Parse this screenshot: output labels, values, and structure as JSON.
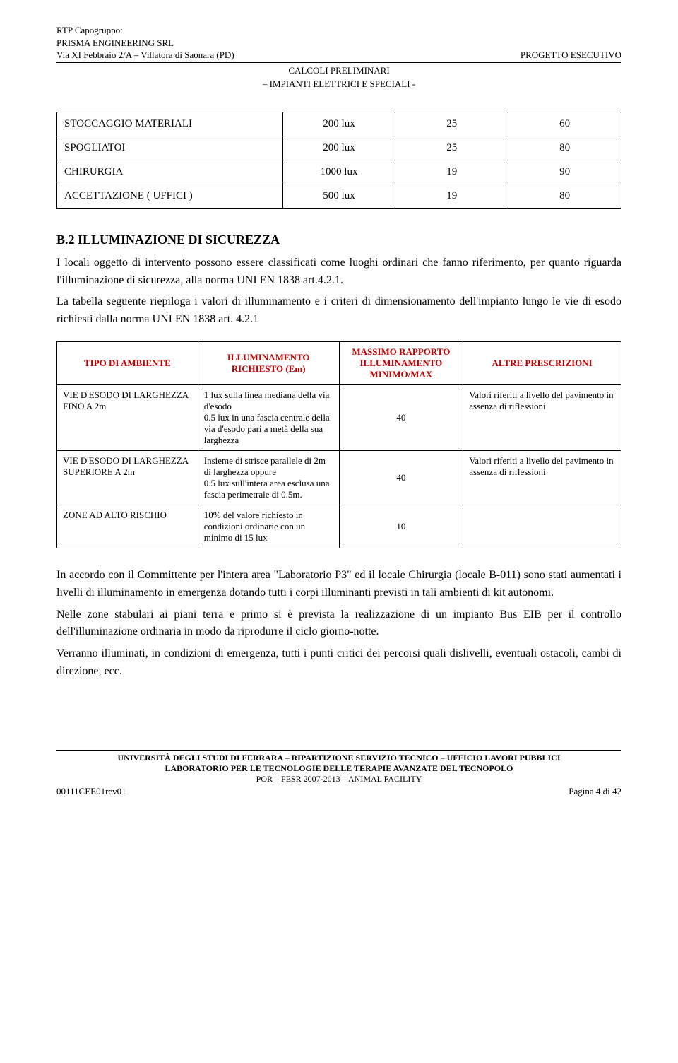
{
  "header": {
    "left1": "RTP Capogruppo:",
    "left2": "PRISMA ENGINEERING SRL",
    "left3": "Via XI Febbraio 2/A – Villatora di Saonara (PD)",
    "right": "PROGETTO ESECUTIVO",
    "center1": "CALCOLI PRELIMINARI",
    "center2": "– IMPIANTI ELETTRICI E SPECIALI -"
  },
  "table1": {
    "rows": [
      {
        "label": "STOCCAGGIO MATERIALI",
        "c2": "200 lux",
        "c3": "25",
        "c4": "60"
      },
      {
        "label": "SPOGLIATOI",
        "c2": "200 lux",
        "c3": "25",
        "c4": "80"
      },
      {
        "label": "CHIRURGIA",
        "c2": "1000 lux",
        "c3": "19",
        "c4": "90"
      },
      {
        "label": "ACCETTAZIONE ( UFFICI )",
        "c2": "500 lux",
        "c3": "19",
        "c4": "80"
      }
    ]
  },
  "section": {
    "heading": "B.2   ILLUMINAZIONE DI SICUREZZA",
    "p1": "I locali oggetto di intervento possono essere classificati come luoghi ordinari che fanno riferimento, per quanto riguarda l'illuminazione di sicurezza, alla norma UNI EN 1838 art.4.2.1.",
    "p2": "La tabella seguente riepiloga i valori di illuminamento e i criteri di dimensionamento dell'impianto lungo le vie di esodo richiesti dalla norma UNI EN 1838 art. 4.2.1"
  },
  "table2": {
    "headers": {
      "h1": "TIPO DI AMBIENTE",
      "h2": "ILLUMINAMENTO RICHIESTO (Em)",
      "h3": "MASSIMO RAPPORTO ILLUMINAMENTO MINIMO/MAX",
      "h4": "ALTRE PRESCRIZIONI",
      "red_color": "#c00000"
    },
    "rows": [
      {
        "c1": "VIE D'ESODO DI LARGHEZZA FINO A 2m",
        "c2": "1 lux sulla linea mediana della via d'esodo\n0.5 lux in una fascia centrale della via d'esodo pari a metà della sua larghezza",
        "c3": "40",
        "c4": "Valori riferiti a livello del pavimento in assenza di riflessioni"
      },
      {
        "c1": "VIE D'ESODO DI LARGHEZZA SUPERIORE A 2m",
        "c2": "Insieme di strisce parallele di 2m di larghezza oppure\n0.5 lux sull'intera area esclusa una fascia perimetrale di 0.5m.",
        "c3": "40",
        "c4": "Valori riferiti a livello del pavimento in assenza di riflessioni"
      },
      {
        "c1": "ZONE AD ALTO RISCHIO",
        "c2": "10% del valore richiesto in condizioni ordinarie con un minimo di 15 lux",
        "c3": "10",
        "c4": ""
      }
    ]
  },
  "paras": {
    "p1": "In accordo con il Committente per l'intera area \"Laboratorio P3\" ed il locale Chirurgia (locale B-011) sono stati aumentati i livelli di illuminamento in emergenza dotando tutti i corpi illuminanti previsti in tali ambienti di kit autonomi.",
    "p2": "Nelle zone stabulari ai piani terra e primo si è prevista la realizzazione di un impianto Bus EIB per il controllo dell'illuminazione ordinaria in modo da riprodurre il ciclo giorno-notte.",
    "p3": "Verranno illuminati, in condizioni di emergenza, tutti i punti critici dei percorsi quali dislivelli, eventuali ostacoli, cambi di direzione, ecc."
  },
  "footer": {
    "line1_bold": "UNIVERSITÀ DEGLI STUDI DI FERRARA – RIPARTIZIONE SERVIZIO TECNICO – UFFICIO LAVORI PUBBLICI",
    "line2_bold": "LABORATORIO PER LE TECNOLOGIE DELLE TERAPIE AVANZATE DEL TECNOPOLO",
    "line3": "POR – FESR 2007-2013 – ANIMAL FACILITY",
    "left": "00111CEE01rev01",
    "right": "Pagina 4 di 42"
  }
}
